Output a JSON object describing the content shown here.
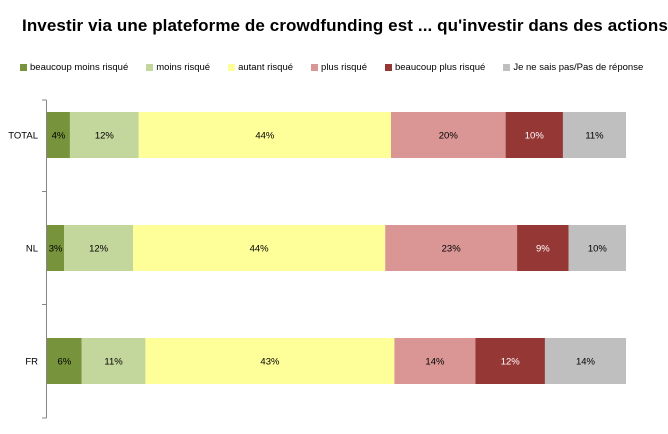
{
  "chart_data": {
    "type": "bar",
    "orientation": "horizontal",
    "stacked": "100%",
    "title": "Investir via une plateforme de crowdfunding est ... qu'investir dans des actions.",
    "categories": [
      "TOTAL",
      "NL",
      "FR"
    ],
    "series": [
      {
        "name": "beaucoup moins risqué",
        "color": "#77933c",
        "values": [
          4,
          3,
          6
        ]
      },
      {
        "name": "moins risqué",
        "color": "#c3d69b",
        "values": [
          12,
          12,
          11
        ]
      },
      {
        "name": "autant risqué",
        "color": "#ffff99",
        "values": [
          44,
          44,
          43
        ]
      },
      {
        "name": "plus risqué",
        "color": "#d99694",
        "values": [
          20,
          23,
          14
        ]
      },
      {
        "name": "beaucoup plus risqué",
        "color": "#953735",
        "values": [
          10,
          9,
          12
        ]
      },
      {
        "name": "Je ne sais pas/Pas de réponse",
        "color": "#bfbfbf",
        "values": [
          11,
          10,
          14
        ]
      }
    ],
    "value_labels": [
      [
        "4%",
        "3%",
        "6%"
      ],
      [
        "12%",
        "12%",
        "11%"
      ],
      [
        "44%",
        "44%",
        "43%"
      ],
      [
        "20%",
        "23%",
        "14%"
      ],
      [
        "10%",
        "9%",
        "12%"
      ],
      [
        "11%",
        "10%",
        "14%"
      ]
    ],
    "xlim": [
      0,
      100
    ],
    "legend": "top",
    "grid": false
  }
}
